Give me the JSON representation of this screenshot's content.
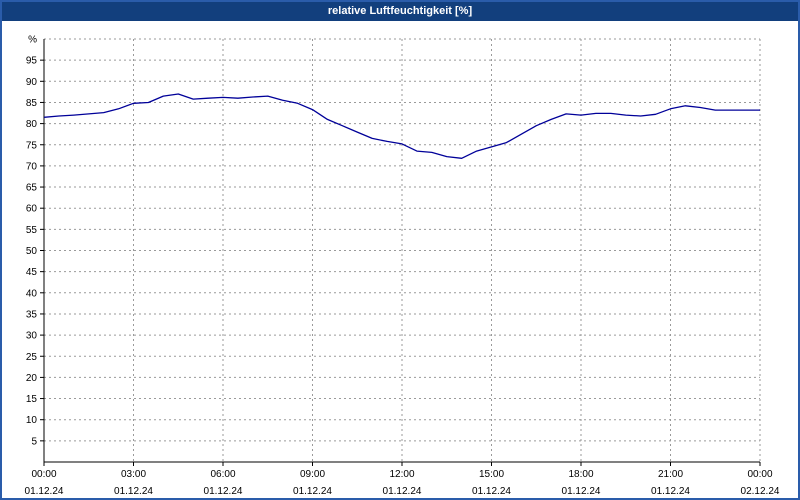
{
  "window": {
    "title": "relative Luftfeuchtigkeit [%]"
  },
  "colors": {
    "titlebar_bg": "#123f7d",
    "titlebar_text": "#ffffff",
    "window_border": "#2a5caa",
    "line_color": "#000099",
    "grid_color": "#9a9a9a",
    "axis_color": "#000000"
  },
  "chart_data": {
    "type": "line",
    "title": "relative Luftfeuchtigkeit [%]",
    "xlabel": "",
    "ylabel": "%",
    "ylim": [
      0,
      100
    ],
    "ytick_step": 5,
    "ytick_labels": [
      "5",
      "10",
      "15",
      "20",
      "25",
      "30",
      "35",
      "40",
      "45",
      "50",
      "55",
      "60",
      "65",
      "70",
      "75",
      "80",
      "85",
      "90",
      "95"
    ],
    "grid": true,
    "legend_position": "none",
    "x_unit": "hours",
    "x_range_hours": [
      0,
      24
    ],
    "xticks": [
      {
        "time": "00:00",
        "date": "01.12.24"
      },
      {
        "time": "03:00",
        "date": "01.12.24"
      },
      {
        "time": "06:00",
        "date": "01.12.24"
      },
      {
        "time": "09:00",
        "date": "01.12.24"
      },
      {
        "time": "12:00",
        "date": "01.12.24"
      },
      {
        "time": "15:00",
        "date": "01.12.24"
      },
      {
        "time": "18:00",
        "date": "01.12.24"
      },
      {
        "time": "21:00",
        "date": "01.12.24"
      },
      {
        "time": "00:00",
        "date": "02.12.24"
      }
    ],
    "series": [
      {
        "name": "relative Luftfeuchtigkeit",
        "x": [
          0,
          0.5,
          1,
          1.5,
          2,
          2.5,
          3,
          3.5,
          4,
          4.5,
          5,
          5.5,
          6,
          6.5,
          7,
          7.5,
          8,
          8.5,
          9,
          9.5,
          10,
          10.5,
          11,
          11.5,
          12,
          12.5,
          13,
          13.5,
          14,
          14.5,
          15,
          15.5,
          16,
          16.5,
          17,
          17.5,
          18,
          18.5,
          19,
          19.5,
          20,
          20.5,
          21,
          21.5,
          22,
          22.5,
          23,
          23.5,
          24
        ],
        "values": [
          81.5,
          81.8,
          82,
          82.3,
          82.6,
          83.5,
          84.8,
          85,
          86.5,
          87,
          85.8,
          86,
          86.2,
          86,
          86.3,
          86.5,
          85.5,
          84.8,
          83.3,
          81,
          79.5,
          78,
          76.5,
          75.8,
          75.2,
          73.5,
          73.2,
          72.2,
          71.8,
          73.5,
          74.5,
          75.5,
          77.5,
          79.5,
          81,
          82.3,
          82,
          82.4,
          82.4,
          82,
          81.8,
          82.2,
          83.5,
          84.2,
          83.8,
          83.2,
          83.2,
          83.2,
          83.2
        ]
      }
    ]
  }
}
